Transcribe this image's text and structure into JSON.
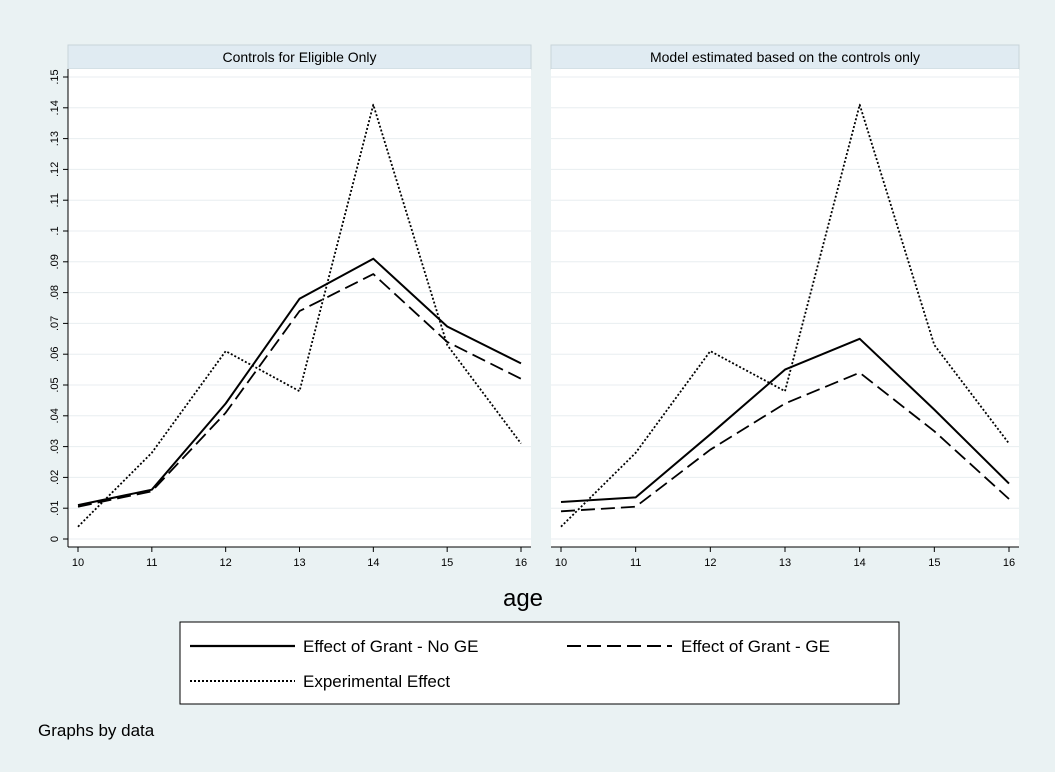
{
  "chart_data": [
    {
      "type": "line",
      "title": "Controls for Eligible Only",
      "xlabel": "age",
      "ylabel": "",
      "x": [
        10,
        11,
        12,
        13,
        14,
        15,
        16
      ],
      "xlim": [
        10,
        16
      ],
      "ylim": [
        0,
        0.15
      ],
      "yticks": [
        "0",
        ".01",
        ".02",
        ".03",
        ".04",
        ".05",
        ".06",
        ".07",
        ".08",
        ".09",
        ".1",
        ".11",
        ".12",
        ".13",
        ".14",
        ".15"
      ],
      "xticks": [
        "10",
        "11",
        "12",
        "13",
        "14",
        "15",
        "16"
      ],
      "grid": true,
      "series": [
        {
          "name": "Effect of Grant - No GE",
          "style": "solid",
          "values": [
            0.011,
            0.016,
            0.044,
            0.078,
            0.091,
            0.069,
            0.057
          ]
        },
        {
          "name": "Effect of Grant - GE",
          "style": "dashed",
          "values": [
            0.0105,
            0.0155,
            0.041,
            0.074,
            0.086,
            0.064,
            0.052
          ]
        },
        {
          "name": "Experimental Effect",
          "style": "dotted",
          "values": [
            0.004,
            0.028,
            0.061,
            0.048,
            0.141,
            0.063,
            0.031
          ]
        }
      ]
    },
    {
      "type": "line",
      "title": "Model estimated based on the controls only",
      "xlabel": "age",
      "ylabel": "",
      "x": [
        10,
        11,
        12,
        13,
        14,
        15,
        16
      ],
      "xlim": [
        10,
        16
      ],
      "ylim": [
        0,
        0.15
      ],
      "yticks": [
        "0",
        ".01",
        ".02",
        ".03",
        ".04",
        ".05",
        ".06",
        ".07",
        ".08",
        ".09",
        ".1",
        ".11",
        ".12",
        ".13",
        ".14",
        ".15"
      ],
      "xticks": [
        "10",
        "11",
        "12",
        "13",
        "14",
        "15",
        "16"
      ],
      "grid": true,
      "series": [
        {
          "name": "Effect of Grant - No GE",
          "style": "solid",
          "values": [
            0.012,
            0.0135,
            0.034,
            0.055,
            0.065,
            0.042,
            0.018
          ]
        },
        {
          "name": "Effect of Grant - GE",
          "style": "dashed",
          "values": [
            0.009,
            0.0105,
            0.029,
            0.044,
            0.054,
            0.035,
            0.013
          ]
        },
        {
          "name": "Experimental Effect",
          "style": "dotted",
          "values": [
            0.004,
            0.028,
            0.061,
            0.048,
            0.141,
            0.063,
            0.031
          ]
        }
      ]
    }
  ],
  "shared_xlabel": "age",
  "legend": {
    "placement": "bottom",
    "items": [
      {
        "label": "Effect of Grant - No GE",
        "style": "solid"
      },
      {
        "label": "Effect of Grant - GE",
        "style": "dashed"
      },
      {
        "label": "Experimental Effect",
        "style": "dotted"
      }
    ]
  },
  "note": "Graphs by data",
  "colors": {
    "background": "#eaf2f3",
    "plot_background": "#ffffff",
    "title_strip": "#e0ebf2",
    "grid": "#e8eef0",
    "line": "#000000"
  }
}
